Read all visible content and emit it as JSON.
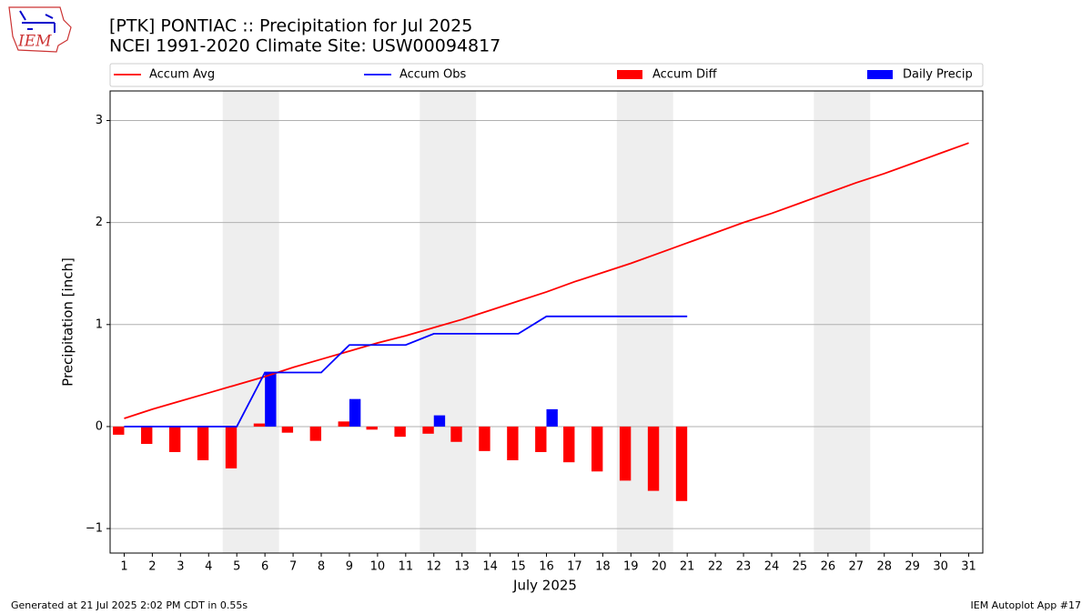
{
  "chart_data": {
    "type": "bar-line",
    "title": "[PTK] PONTIAC :: Precipitation for Jul 2025",
    "subtitle": "NCEI 1991-2020 Climate Site: USW00094817",
    "xlabel": "July 2025",
    "ylabel": "Precipitation [inch]",
    "footer_left": "Generated at 21 Jul 2025 2:02 PM CDT in 0.55s",
    "footer_right": "IEM Autoplot App #17",
    "logo_text": "IEM",
    "x": [
      1,
      2,
      3,
      4,
      5,
      6,
      7,
      8,
      9,
      10,
      11,
      12,
      13,
      14,
      15,
      16,
      17,
      18,
      19,
      20,
      21,
      22,
      23,
      24,
      25,
      26,
      27,
      28,
      29,
      30,
      31
    ],
    "xlim": [
      0.5,
      31.5
    ],
    "xticks": [
      1,
      2,
      3,
      4,
      5,
      6,
      7,
      8,
      9,
      10,
      11,
      12,
      13,
      14,
      15,
      16,
      17,
      18,
      19,
      20,
      21,
      22,
      23,
      24,
      25,
      26,
      27,
      28,
      29,
      30,
      31
    ],
    "ylim": [
      -1.24,
      3.29
    ],
    "yticks": [
      {
        "value": -1,
        "label": "−1"
      },
      0,
      1,
      2,
      3
    ],
    "grid": true,
    "shaded_ranges": [
      [
        4.5,
        6.5
      ],
      [
        11.5,
        13.5
      ],
      [
        18.5,
        20.5
      ],
      [
        25.5,
        27.5
      ]
    ],
    "shade_color": "#eeeeee",
    "series": [
      {
        "name": "Accum Avg",
        "kind": "line",
        "color": "#ff0000",
        "values": [
          0.08,
          0.17,
          0.25,
          0.33,
          0.41,
          0.49,
          0.58,
          0.66,
          0.74,
          0.82,
          0.89,
          0.97,
          1.05,
          1.14,
          1.23,
          1.32,
          1.42,
          1.51,
          1.6,
          1.7,
          1.8,
          1.9,
          2.0,
          2.09,
          2.19,
          2.29,
          2.39,
          2.48,
          2.58,
          2.68,
          2.78
        ]
      },
      {
        "name": "Accum Obs",
        "kind": "line",
        "color": "#0000ff",
        "values": [
          0,
          0,
          0,
          0,
          0,
          0.53,
          0.53,
          0.53,
          0.8,
          0.8,
          0.8,
          0.91,
          0.91,
          0.91,
          0.91,
          1.08,
          1.08,
          1.08,
          1.08,
          1.08,
          1.08,
          null,
          null,
          null,
          null,
          null,
          null,
          null,
          null,
          null,
          null
        ]
      },
      {
        "name": "Accum Diff",
        "kind": "bar",
        "color": "#ff0000",
        "values": [
          -0.08,
          -0.17,
          -0.25,
          -0.33,
          -0.41,
          0.03,
          -0.06,
          -0.14,
          0.05,
          -0.03,
          -0.1,
          -0.07,
          -0.15,
          -0.24,
          -0.33,
          -0.25,
          -0.35,
          -0.44,
          -0.53,
          -0.63,
          -0.73,
          null,
          null,
          null,
          null,
          null,
          null,
          null,
          null,
          null,
          null
        ]
      },
      {
        "name": "Daily Precip",
        "kind": "bar",
        "color": "#0000ff",
        "values": [
          0,
          0,
          0,
          0,
          0,
          0.53,
          0,
          0,
          0.27,
          0,
          0,
          0.11,
          0,
          0,
          0,
          0.17,
          0,
          0,
          0,
          0,
          0,
          null,
          null,
          null,
          null,
          null,
          null,
          null,
          null,
          null,
          null
        ]
      }
    ]
  }
}
